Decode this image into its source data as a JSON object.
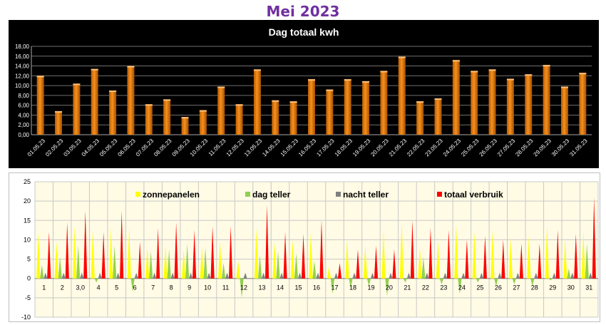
{
  "page": {
    "title": "Mei 2023"
  },
  "colors": {
    "title": "#7030a0",
    "bar": "#f7901e",
    "zonnepanelen": "#ffff00",
    "dag_teller": "#92d050",
    "nacht_teller": "#808080",
    "totaal_verbruik": "#ff0000",
    "plot_bg": "#fffbe5"
  },
  "chart_data": [
    {
      "type": "bar",
      "title": "Dag totaal kwh",
      "categories": [
        "01.05.23",
        "02.05.23",
        "03.05.23",
        "04.05.23",
        "05.05.23",
        "06.05.23",
        "07.05.23",
        "08.05.23",
        "09.05.23",
        "10.05.23",
        "11.05.23",
        "12.05.23",
        "13.05.23",
        "14.05.23",
        "15.05.23",
        "16.05.23",
        "17.05.23",
        "18.05.23",
        "19.05.23",
        "20.05.23",
        "21.05.23",
        "22.05.23",
        "23.05.23",
        "24.05.23",
        "25.05.23",
        "26.05.23",
        "27.05.23",
        "28.05.23",
        "29.05.23",
        "30.05.23",
        "31.05.23"
      ],
      "values": [
        12.0,
        4.8,
        10.4,
        13.4,
        9.0,
        14.0,
        6.2,
        7.2,
        3.6,
        5.0,
        9.8,
        6.2,
        13.3,
        7.0,
        6.8,
        11.3,
        9.2,
        11.3,
        10.9,
        13.0,
        15.9,
        6.8,
        7.4,
        15.2,
        13.0,
        13.3,
        11.4,
        12.3,
        14.2,
        9.8,
        12.6
      ],
      "yticks": [
        "0,00",
        "2,00",
        "4,00",
        "6,00",
        "8,00",
        "10,00",
        "12,00",
        "14,00",
        "16,00",
        "18,00"
      ],
      "ylim": [
        0,
        18
      ],
      "grid": true
    },
    {
      "type": "area",
      "legend_position": "top",
      "categories": [
        "1",
        "2",
        "3,0",
        "4",
        "5",
        "6",
        "7",
        "8",
        "9",
        "10",
        "11",
        "12",
        "13",
        "14",
        "15",
        "16",
        "17",
        "18",
        "19",
        "20",
        "21",
        "22",
        "23",
        "24",
        "25",
        "26",
        "27",
        "28",
        "29",
        "30",
        "31"
      ],
      "yticks": [
        "-10",
        "-5",
        "0",
        "5",
        "10",
        "15",
        "20",
        "25"
      ],
      "ylim": [
        -10,
        25
      ],
      "grid": true,
      "series": [
        {
          "name": "zonnepanelen",
          "values": [
            12.0,
            9.5,
            13.5,
            12.5,
            13.0,
            13.0,
            8.0,
            8.5,
            7.5,
            8.0,
            9.5,
            4.5,
            13.0,
            9.5,
            10.0,
            12.0,
            3.0,
            10.0,
            8.5,
            12.5,
            14.5,
            8.0,
            9.5,
            14.0,
            12.0,
            12.5,
            10.5,
            11.0,
            13.5,
            10.0,
            12.0
          ]
        },
        {
          "name": "dag teller",
          "values": [
            3.5,
            5.5,
            8.5,
            -1.0,
            8.5,
            -3.5,
            7.0,
            7.5,
            9.0,
            8.0,
            4.0,
            -5.0,
            6.0,
            7.0,
            6.5,
            4.5,
            -4.0,
            -2.5,
            -2.0,
            -4.5,
            -1.0,
            5.5,
            -1.5,
            -4.0,
            -1.0,
            -2.0,
            -1.5,
            -2.0,
            -0.5,
            2.5,
            9.0
          ]
        },
        {
          "name": "nacht teller",
          "values": [
            1.5,
            1.5,
            1.5,
            1.5,
            1.5,
            1.5,
            1.5,
            1.5,
            1.5,
            1.5,
            1.5,
            1.5,
            1.5,
            1.5,
            1.5,
            1.5,
            1.5,
            1.5,
            1.5,
            1.5,
            1.5,
            1.5,
            1.5,
            1.5,
            1.5,
            1.5,
            1.5,
            1.5,
            1.5,
            1.5,
            1.5
          ]
        },
        {
          "name": "totaal verbruik",
          "values": [
            12.0,
            14.5,
            17.5,
            12.0,
            17.5,
            9.5,
            13.0,
            14.5,
            12.5,
            13.5,
            13.5,
            0.0,
            19.0,
            12.0,
            11.5,
            15.0,
            4.0,
            7.5,
            8.5,
            7.5,
            15.0,
            13.0,
            12.5,
            10.0,
            11.0,
            10.0,
            9.0,
            9.0,
            12.5,
            11.5,
            21.0
          ]
        }
      ]
    }
  ]
}
